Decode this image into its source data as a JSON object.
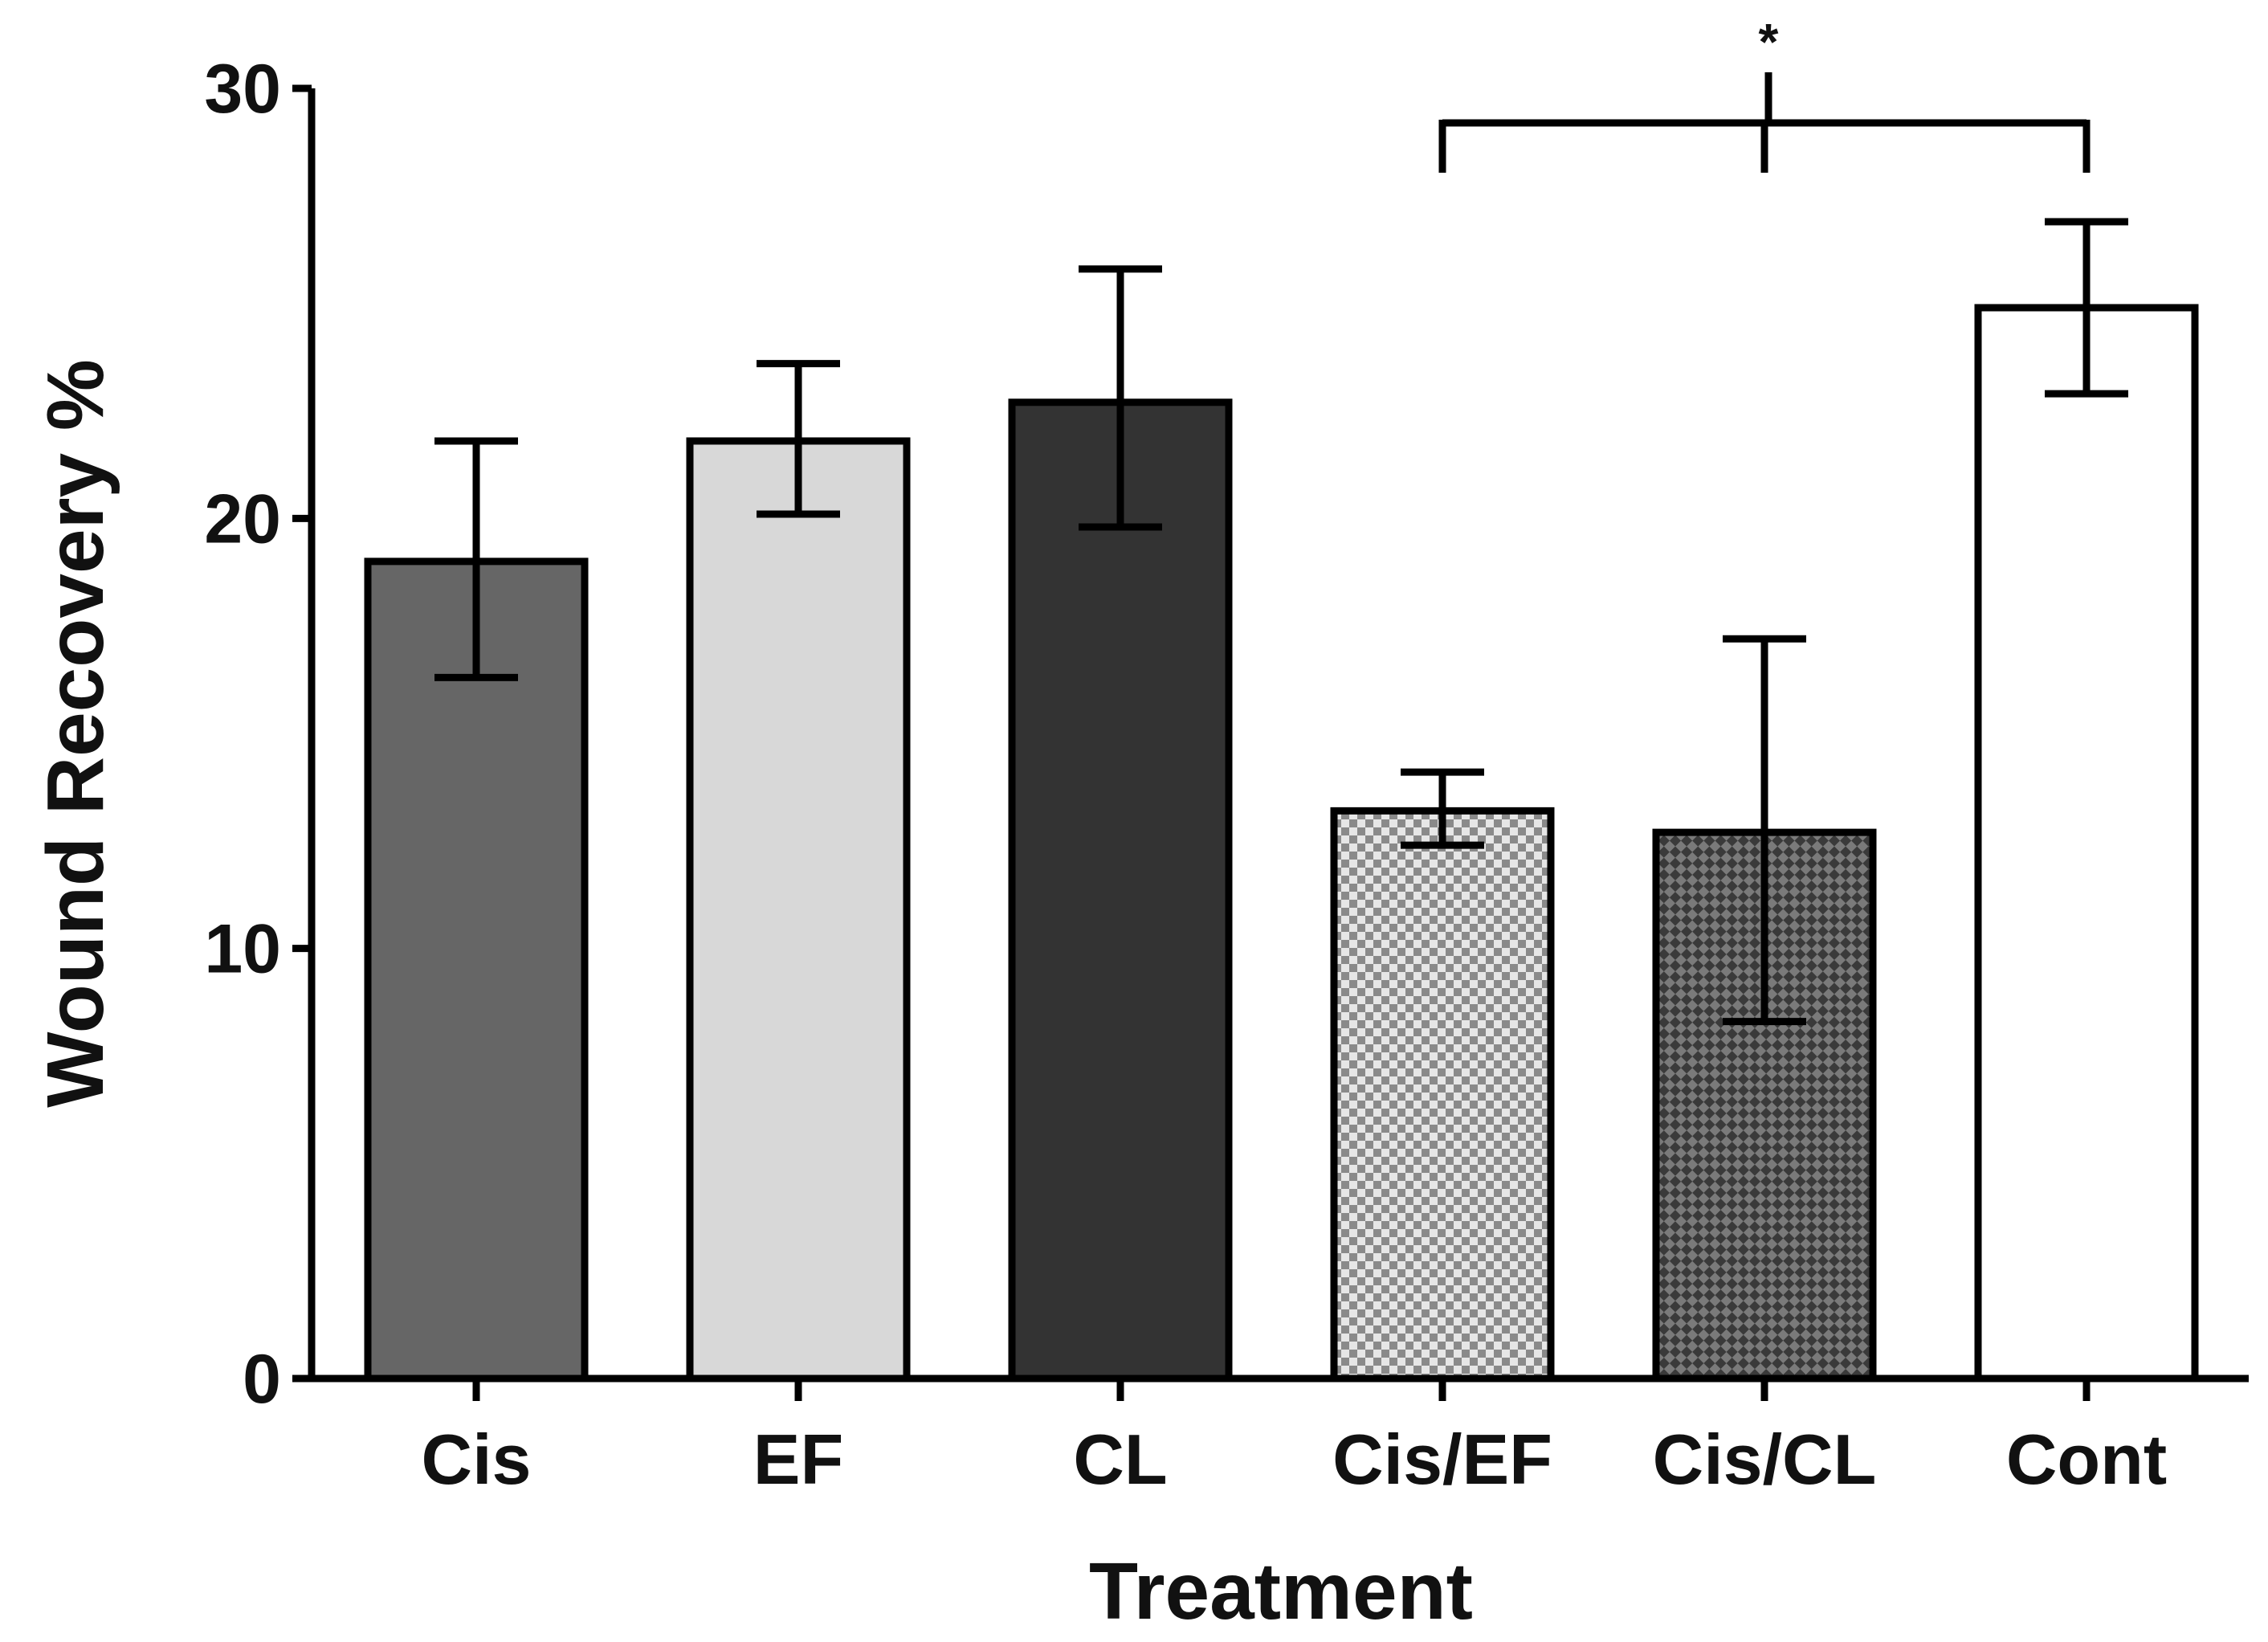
{
  "chart_data": {
    "type": "bar",
    "title": "",
    "xlabel": "Treatment",
    "ylabel": "Wound Recovery %",
    "ylim": [
      0,
      30
    ],
    "yticks": [
      0,
      10,
      20,
      30
    ],
    "ytick_labels": [
      "0",
      "10",
      "20",
      "30"
    ],
    "categories": [
      "Cis",
      "EF",
      "CL",
      "Cis/EF",
      "Cis/CL",
      "Cont"
    ],
    "values": [
      19.0,
      21.8,
      22.7,
      13.2,
      12.7,
      24.9
    ],
    "error_low": [
      16.3,
      20.1,
      19.8,
      12.4,
      8.3,
      22.9
    ],
    "error_high": [
      21.8,
      23.6,
      25.8,
      14.1,
      17.2,
      26.9
    ],
    "fills": [
      "#666666",
      "#d8d8d8",
      "#333333",
      "check-light",
      "check-dark",
      "#ffffff"
    ],
    "significance": {
      "label": "*",
      "groups": [
        "Cis/EF",
        "Cis/CL"
      ],
      "versus": "Cont"
    }
  }
}
